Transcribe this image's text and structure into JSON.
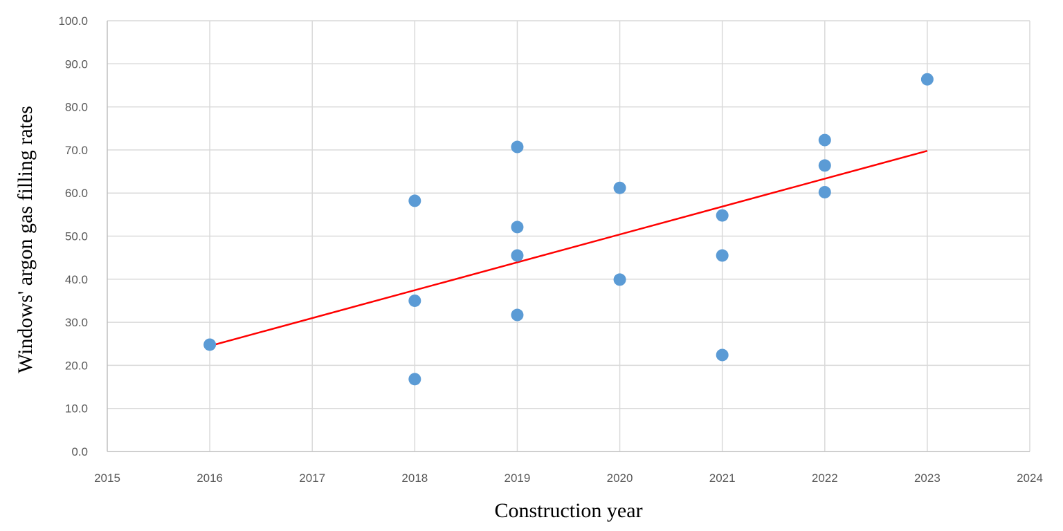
{
  "chart_data": {
    "type": "scatter",
    "title": "",
    "xlabel": "Construction year",
    "ylabel": "Windows' argon gas filling rates",
    "xlim": [
      2015,
      2024
    ],
    "ylim": [
      0,
      100
    ],
    "x_ticks": [
      "2015",
      "2016",
      "2017",
      "2018",
      "2019",
      "2020",
      "2021",
      "2022",
      "2023",
      "2024"
    ],
    "y_ticks": [
      "0.0",
      "10.0",
      "20.0",
      "30.0",
      "40.0",
      "50.0",
      "60.0",
      "70.0",
      "80.0",
      "90.0",
      "100.0"
    ],
    "grid": true,
    "legend": false,
    "series": [
      {
        "points": [
          {
            "x": 2016,
            "y": 24.8
          },
          {
            "x": 2018,
            "y": 58.2
          },
          {
            "x": 2018,
            "y": 35.0
          },
          {
            "x": 2018,
            "y": 16.8
          },
          {
            "x": 2019,
            "y": 70.7
          },
          {
            "x": 2019,
            "y": 52.1
          },
          {
            "x": 2019,
            "y": 45.5
          },
          {
            "x": 2019,
            "y": 31.7
          },
          {
            "x": 2020,
            "y": 61.2
          },
          {
            "x": 2020,
            "y": 39.9
          },
          {
            "x": 2021,
            "y": 54.8
          },
          {
            "x": 2021,
            "y": 45.5
          },
          {
            "x": 2021,
            "y": 22.4
          },
          {
            "x": 2022,
            "y": 72.3
          },
          {
            "x": 2022,
            "y": 66.4
          },
          {
            "x": 2022,
            "y": 60.2
          },
          {
            "x": 2023,
            "y": 86.4
          }
        ]
      }
    ],
    "trendline": {
      "type": "linear",
      "x": [
        2016,
        2023
      ],
      "y": [
        24.5,
        69.8
      ]
    },
    "colors": {
      "points": "#5b9bd5",
      "trendline": "#ff0000",
      "grid": "#d9d9d9",
      "axis": "#bfbfbf"
    }
  }
}
